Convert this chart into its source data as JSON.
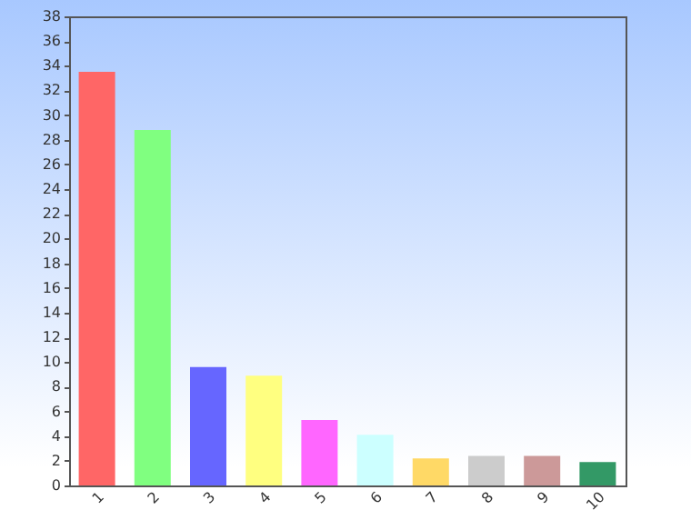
{
  "chart_data": {
    "type": "bar",
    "categories": [
      "1",
      "2",
      "3",
      "4",
      "5",
      "6",
      "7",
      "8",
      "9",
      "10"
    ],
    "values": [
      33.5,
      28.8,
      9.6,
      8.9,
      5.3,
      4.1,
      2.2,
      2.4,
      2.4,
      1.9
    ],
    "colors": [
      "#ff6666",
      "#80ff80",
      "#6666ff",
      "#ffff80",
      "#ff66ff",
      "#ccffff",
      "#ffd966",
      "#cccccc",
      "#cc9999",
      "#339966"
    ],
    "ylim": [
      0,
      38
    ],
    "yticks": [
      0,
      2,
      4,
      6,
      8,
      10,
      12,
      14,
      16,
      18,
      20,
      22,
      24,
      26,
      28,
      30,
      32,
      34,
      36,
      38
    ],
    "grid": false
  }
}
